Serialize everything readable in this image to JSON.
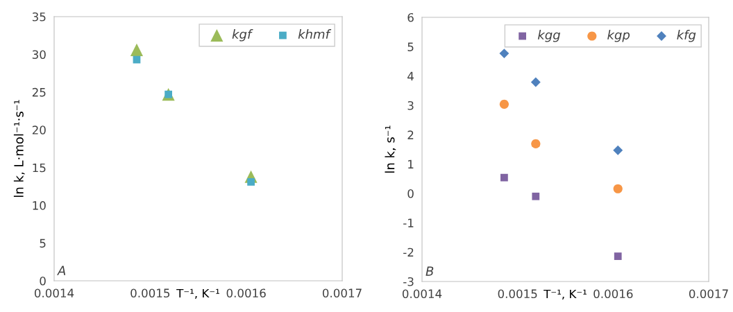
{
  "chart_data": [
    {
      "type": "scatter",
      "xlabel": "T⁻¹, K⁻¹",
      "ylabel": "ln k, L·mol⁻¹·s⁻¹",
      "annotations": [
        "A"
      ],
      "xlim": [
        0.0014,
        0.0017
      ],
      "xticks": [
        0.0014,
        0.0015,
        0.0016,
        0.0017
      ],
      "ylim": [
        0,
        35
      ],
      "yticks": [
        0,
        5,
        10,
        15,
        20,
        25,
        30,
        35
      ],
      "grid": false,
      "legend": "top right",
      "x": [
        0.001486,
        0.001519,
        0.001605
      ],
      "series": [
        {
          "name": "kgf",
          "color": "#9bbb59",
          "marker": "triangle",
          "values": [
            30.6,
            24.7,
            13.8
          ]
        },
        {
          "name": "khmf",
          "color": "#4bacc6",
          "marker": "square",
          "values": [
            29.3,
            24.7,
            13.1
          ]
        }
      ]
    },
    {
      "type": "scatter",
      "xlabel": "T⁻¹, K⁻¹",
      "ylabel": "ln k, s⁻¹",
      "annotations": [
        "B"
      ],
      "xlim": [
        0.0014,
        0.0017
      ],
      "xticks": [
        0.0014,
        0.0015,
        0.0016,
        0.0017
      ],
      "ylim": [
        -3,
        6
      ],
      "yticks": [
        -3,
        -2,
        -1,
        0,
        1,
        2,
        3,
        4,
        5,
        6
      ],
      "grid": false,
      "legend": "top right",
      "x": [
        0.001486,
        0.001519,
        0.001605
      ],
      "series": [
        {
          "name": "kgg",
          "color": "#8064a2",
          "marker": "square",
          "values": [
            0.54,
            -0.1,
            -2.14
          ]
        },
        {
          "name": "kgp",
          "color": "#f79646",
          "marker": "circle",
          "values": [
            3.04,
            1.69,
            0.16
          ]
        },
        {
          "name": "kfg",
          "color": "#4f81bd",
          "marker": "diamond",
          "values": [
            4.77,
            3.79,
            1.47
          ]
        }
      ]
    }
  ]
}
